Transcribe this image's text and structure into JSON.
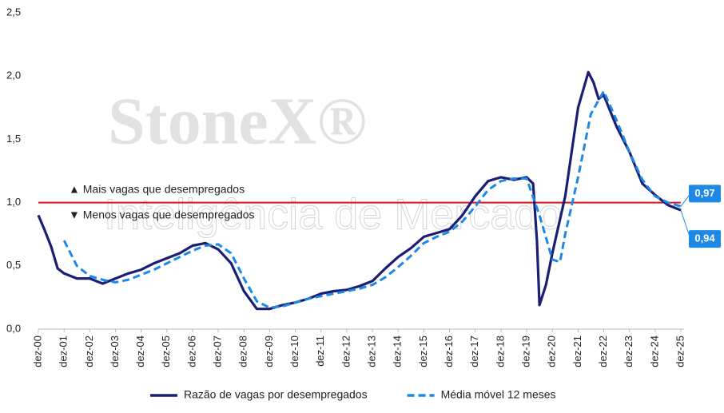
{
  "chart_data": {
    "type": "line",
    "watermark": [
      "StoneX®",
      "Inteligência de Mercado"
    ],
    "annotations": [
      "▲ Mais vagas que desempregados",
      "▼ Menos vagas que desempregados"
    ],
    "reference_line": {
      "value": 1,
      "color": "#e3141b"
    },
    "xlim": [
      0,
      25
    ],
    "xticks": [
      {
        "value": 0,
        "label": "dez-00"
      },
      {
        "value": 1,
        "label": "dez-01"
      },
      {
        "value": 2,
        "label": "dez-02"
      },
      {
        "value": 3,
        "label": "dez-03"
      },
      {
        "value": 4,
        "label": "dez-04"
      },
      {
        "value": 5,
        "label": "dez-05"
      },
      {
        "value": 6,
        "label": "dez-06"
      },
      {
        "value": 7,
        "label": "dez-07"
      },
      {
        "value": 8,
        "label": "dez-08"
      },
      {
        "value": 9,
        "label": "dez-09"
      },
      {
        "value": 10,
        "label": "dez-10"
      },
      {
        "value": 11,
        "label": "dez-11"
      },
      {
        "value": 12,
        "label": "dez-12"
      },
      {
        "value": 13,
        "label": "dez-13"
      },
      {
        "value": 14,
        "label": "dez-14"
      },
      {
        "value": 15,
        "label": "dez-15"
      },
      {
        "value": 16,
        "label": "dez-16"
      },
      {
        "value": 17,
        "label": "dez-17"
      },
      {
        "value": 18,
        "label": "dez-18"
      },
      {
        "value": 19,
        "label": "dez-19"
      },
      {
        "value": 20,
        "label": "dez-20"
      },
      {
        "value": 21,
        "label": "dez-21"
      },
      {
        "value": 22,
        "label": "dez-22"
      },
      {
        "value": 23,
        "label": "dez-23"
      },
      {
        "value": 24,
        "label": "dez-24"
      },
      {
        "value": 25,
        "label": "dez-25"
      }
    ],
    "ylim": [
      0,
      2.5
    ],
    "yticks": [
      {
        "value": 0,
        "label": "0,0"
      },
      {
        "value": 0.5,
        "label": "0,5"
      },
      {
        "value": 1,
        "label": "1,0"
      },
      {
        "value": 1.5,
        "label": "1,5"
      },
      {
        "value": 2,
        "label": "2,0"
      },
      {
        "value": 2.5,
        "label": "2,5"
      }
    ],
    "grid": false,
    "legend": "bottom",
    "series": [
      {
        "name": "Razão de vagas por desempregados",
        "color": "#1b1f73",
        "dashed": false,
        "last_value_label": "0,94",
        "x": [
          0,
          0.25,
          0.5,
          0.75,
          1,
          1.5,
          2,
          2.5,
          3,
          3.5,
          4,
          4.5,
          5,
          5.5,
          6,
          6.5,
          7,
          7.5,
          8,
          8.5,
          9,
          9.5,
          10,
          10.5,
          11,
          11.5,
          12,
          12.5,
          13,
          13.5,
          14,
          14.5,
          15,
          15.5,
          16,
          16.5,
          17,
          17.5,
          18,
          18.5,
          19,
          19.25,
          19.4,
          19.5,
          19.75,
          20,
          20.5,
          21,
          21.4,
          21.6,
          21.8,
          22,
          22.5,
          23,
          23.5,
          24,
          24.5,
          25
        ],
        "values": [
          0.9,
          0.78,
          0.65,
          0.48,
          0.44,
          0.4,
          0.4,
          0.36,
          0.4,
          0.44,
          0.47,
          0.52,
          0.56,
          0.6,
          0.66,
          0.68,
          0.63,
          0.52,
          0.3,
          0.16,
          0.16,
          0.19,
          0.21,
          0.24,
          0.28,
          0.3,
          0.31,
          0.34,
          0.38,
          0.48,
          0.57,
          0.64,
          0.73,
          0.76,
          0.79,
          0.9,
          1.05,
          1.17,
          1.2,
          1.18,
          1.2,
          1.15,
          0.7,
          0.19,
          0.35,
          0.6,
          1.05,
          1.75,
          2.03,
          1.95,
          1.82,
          1.85,
          1.6,
          1.4,
          1.15,
          1.06,
          0.98,
          0.94
        ]
      },
      {
        "name": "Média móvel 12 meses",
        "color": "#1e88e5",
        "dashed": true,
        "last_value_label": "0,97",
        "x": [
          1,
          1.5,
          2,
          2.5,
          3,
          3.5,
          4,
          4.5,
          5,
          5.5,
          6,
          6.5,
          7,
          7.5,
          8,
          8.5,
          9,
          9.5,
          10,
          10.5,
          11,
          11.5,
          12,
          12.5,
          13,
          13.5,
          14,
          14.5,
          15,
          15.5,
          16,
          16.5,
          17,
          17.5,
          18,
          18.5,
          19,
          19.5,
          20,
          20.3,
          20.5,
          21,
          21.5,
          22,
          22.5,
          23,
          23.5,
          24,
          24.5,
          25
        ],
        "values": [
          0.7,
          0.5,
          0.42,
          0.39,
          0.37,
          0.39,
          0.43,
          0.47,
          0.52,
          0.57,
          0.62,
          0.66,
          0.67,
          0.6,
          0.4,
          0.22,
          0.17,
          0.18,
          0.21,
          0.24,
          0.26,
          0.28,
          0.3,
          0.32,
          0.35,
          0.41,
          0.49,
          0.58,
          0.68,
          0.73,
          0.77,
          0.85,
          0.97,
          1.1,
          1.17,
          1.19,
          1.19,
          0.9,
          0.55,
          0.53,
          0.75,
          1.2,
          1.7,
          1.88,
          1.65,
          1.4,
          1.18,
          1.05,
          1.0,
          0.97
        ]
      }
    ]
  }
}
